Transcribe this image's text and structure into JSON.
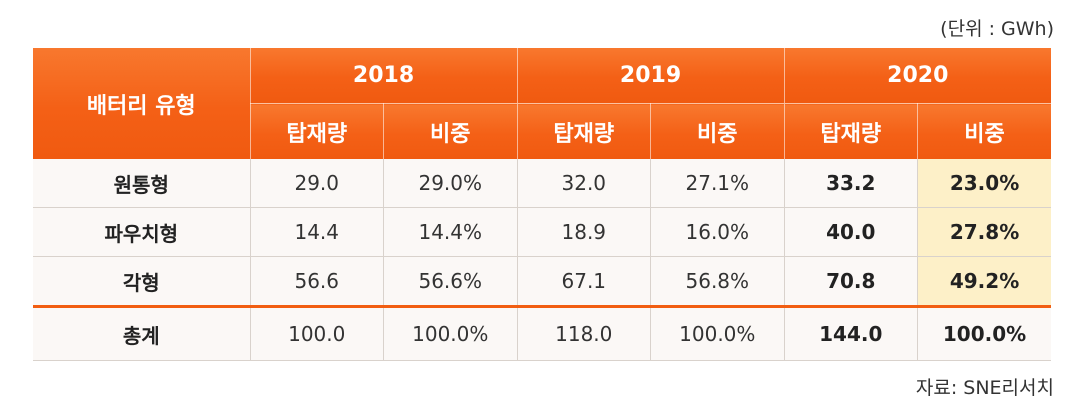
{
  "unit_label": "(단위 : GWh)",
  "source_label": "자료: SNE리서치",
  "chart_data": {
    "type": "table",
    "header": {
      "type_label": "배터리 유형",
      "years": [
        "2018",
        "2019",
        "2020"
      ],
      "sub_labels": [
        "탑재량",
        "비중",
        "탑재량",
        "비중",
        "탑재량",
        "비중"
      ]
    },
    "rows": [
      {
        "name": "원통형",
        "cells": [
          "29.0",
          "29.0%",
          "32.0",
          "27.1%",
          "33.2",
          "23.0%"
        ]
      },
      {
        "name": "파우치형",
        "cells": [
          "14.4",
          "14.4%",
          "18.9",
          "16.0%",
          "40.0",
          "27.8%"
        ]
      },
      {
        "name": "각형",
        "cells": [
          "56.6",
          "56.6%",
          "67.1",
          "56.8%",
          "70.8",
          "49.2%"
        ]
      },
      {
        "name": "총계",
        "cells": [
          "100.0",
          "100.0%",
          "118.0",
          "100.0%",
          "144.0",
          "100.0%"
        ]
      }
    ],
    "highlight_color": "#fdf0c8",
    "header_color": "#f46016"
  }
}
